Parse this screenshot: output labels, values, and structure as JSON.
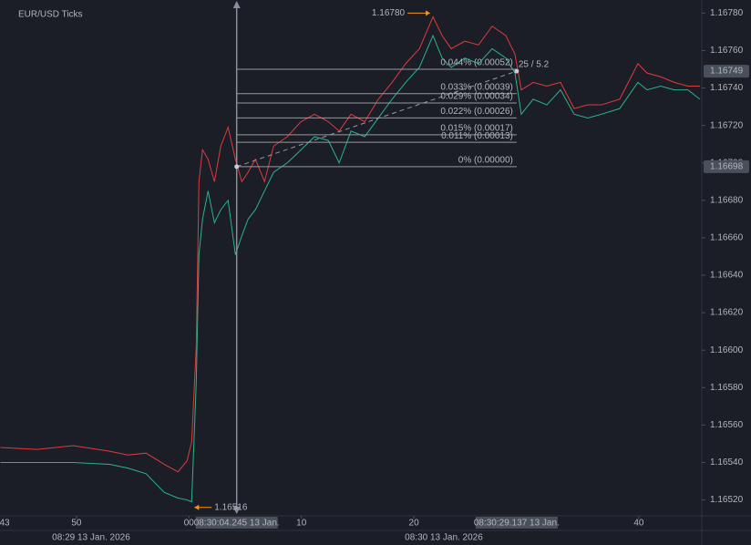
{
  "chart_data": {
    "type": "line",
    "title": "EUR/USD Ticks",
    "x": [
      43.24,
      46.48,
      49.72,
      52.96,
      54.57,
      56.19,
      57.81,
      59.03,
      59.84,
      60.24,
      60.65,
      60.89,
      61.21,
      61.7,
      62.27,
      62.83,
      63.48,
      64.13,
      64.7,
      65.26,
      65.91,
      66.72,
      67.53,
      68.74,
      69.96,
      71.17,
      72.39,
      73.36,
      74.41,
      75.63,
      76.84,
      78.06,
      79.27,
      80.49,
      81.7,
      82.51,
      83.32,
      84.53,
      85.75,
      86.96,
      88.18,
      88.99,
      89.55,
      90.61,
      91.82,
      93.04,
      94.25,
      95.47,
      96.68,
      98.3,
      99.92,
      100.73,
      101.94,
      103.16,
      104.37,
      105.43
    ],
    "series": [
      {
        "color": "#2bb38c",
        "values": [
          1.1654,
          1.1654,
          1.1654,
          1.16539,
          1.16537,
          1.16534,
          1.16524,
          1.16521,
          1.1652,
          1.16519,
          1.16583,
          1.16651,
          1.1667,
          1.16685,
          1.16668,
          1.16675,
          1.1668,
          1.16651,
          1.16661,
          1.1667,
          1.16675,
          1.16685,
          1.16695,
          1.167,
          1.16707,
          1.16714,
          1.16712,
          1.167,
          1.16717,
          1.16714,
          1.16724,
          1.16734,
          1.16743,
          1.16751,
          1.16768,
          1.16756,
          1.16751,
          1.16756,
          1.16753,
          1.16761,
          1.16756,
          1.16748,
          1.16726,
          1.16734,
          1.16731,
          1.16739,
          1.16726,
          1.16724,
          1.16726,
          1.16729,
          1.16743,
          1.16739,
          1.16741,
          1.16739,
          1.16739,
          1.16734
        ]
      },
      {
        "color": "#e03b3b",
        "values": [
          1.16548,
          1.16547,
          1.16549,
          1.16546,
          1.16544,
          1.16545,
          1.16539,
          1.16535,
          1.16541,
          1.16551,
          1.16602,
          1.1669,
          1.16707,
          1.16702,
          1.1669,
          1.16709,
          1.16719,
          1.16702,
          1.1669,
          1.16695,
          1.16702,
          1.1669,
          1.16709,
          1.16714,
          1.16722,
          1.16726,
          1.16722,
          1.16717,
          1.16726,
          1.16722,
          1.16734,
          1.16743,
          1.16753,
          1.16761,
          1.16778,
          1.16768,
          1.16761,
          1.16765,
          1.16763,
          1.16773,
          1.16768,
          1.16758,
          1.16739,
          1.16743,
          1.16741,
          1.16743,
          1.16729,
          1.16731,
          1.16731,
          1.16734,
          1.16753,
          1.16748,
          1.16746,
          1.16743,
          1.16741,
          1.16741
        ]
      }
    ],
    "xlim": [
      43.2,
      105.6
    ],
    "ylim": [
      1.16512,
      1.16787
    ],
    "xticks": [
      43,
      50,
      {
        "value": 60,
        "label": "00"
      },
      {
        "value": 70,
        "label": "10"
      },
      {
        "value": 80,
        "label": "20"
      },
      {
        "value": 100,
        "label": "40"
      }
    ],
    "yticks": [
      {
        "value": 1.1652,
        "label": "1.16520"
      },
      {
        "value": 1.1654,
        "label": "1.16540"
      },
      {
        "value": 1.1656,
        "label": "1.16560"
      },
      {
        "value": 1.1658,
        "label": "1.16580"
      },
      {
        "value": 1.166,
        "label": "1.16600"
      },
      {
        "value": 1.1662,
        "label": "1.16620"
      },
      {
        "value": 1.1664,
        "label": "1.16640"
      },
      {
        "value": 1.1666,
        "label": "1.16660"
      },
      {
        "value": 1.1668,
        "label": "1.16680"
      },
      {
        "value": 1.167,
        "label": "1.16700"
      },
      {
        "value": 1.1672,
        "label": "1.16720"
      },
      {
        "value": 1.1674,
        "label": "1.16740"
      },
      {
        "value": 1.1676,
        "label": "1.16760"
      },
      {
        "value": 1.1678,
        "label": "1.16780"
      }
    ],
    "date_labels": [
      "08:29 13 Jan. 2026",
      "08:30 13 Jan. 2026"
    ],
    "price_badges": [
      1.16749,
      1.16698
    ],
    "high_marker": {
      "x": 81.7,
      "value": 1.1678,
      "label": "1.16780"
    },
    "low_marker": {
      "x": 60.24,
      "value": 1.16516
    },
    "fib": {
      "start": {
        "x": 64.245,
        "value": 1.16698,
        "label": "08:30:04.245 13 Jan."
      },
      "end": {
        "x": 89.137,
        "value": 1.16749,
        "label": "08:30:29.137 13 Jan."
      },
      "ratio_label": "25 / 5.2",
      "levels": [
        {
          "value": 0.00052,
          "label": "0.044% (0.00052)"
        },
        {
          "value": 0.00039,
          "label": "0.033% (0.00039)"
        },
        {
          "value": 0.00034,
          "label": "0.029% (0.00034)"
        },
        {
          "value": 0.00026,
          "label": "0.022% (0.00026)"
        },
        {
          "value": 0.00017,
          "label": "0.015% (0.00017)"
        },
        {
          "value": 0.00013,
          "label": "0.011% (0.00013)"
        },
        {
          "value": 0,
          "label": "0% (0.00000)"
        }
      ]
    }
  }
}
